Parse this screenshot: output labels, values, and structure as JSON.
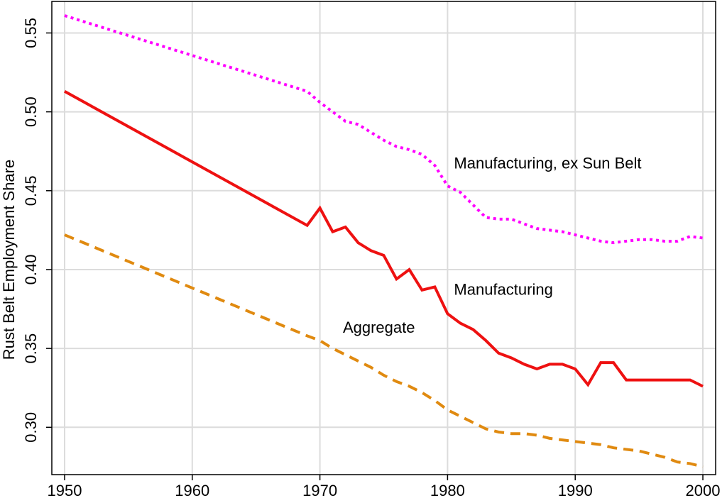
{
  "chart_data": {
    "type": "line",
    "title": "",
    "xlabel": "",
    "ylabel": "Rust Belt Employment Share",
    "xlim": [
      1949,
      2001
    ],
    "ylim": [
      0.27,
      0.57
    ],
    "x_ticks": [
      "1950",
      "1960",
      "1970",
      "1980",
      "1990",
      "2000"
    ],
    "y_ticks": [
      "0.30",
      "0.35",
      "0.40",
      "0.45",
      "0.50",
      "0.55"
    ],
    "grid": true,
    "legend": "none",
    "series": [
      {
        "name": "Manufacturing, ex Sun Belt",
        "color": "#ff00ff",
        "dash": "dotted",
        "points": [
          [
            1950,
            0.561
          ],
          [
            1969,
            0.513
          ],
          [
            1970,
            0.506
          ],
          [
            1971,
            0.5
          ],
          [
            1972,
            0.494
          ],
          [
            1973,
            0.492
          ],
          [
            1974,
            0.487
          ],
          [
            1975,
            0.482
          ],
          [
            1976,
            0.478
          ],
          [
            1977,
            0.476
          ],
          [
            1978,
            0.473
          ],
          [
            1979,
            0.466
          ],
          [
            1980,
            0.453
          ],
          [
            1981,
            0.449
          ],
          [
            1982,
            0.441
          ],
          [
            1983,
            0.433
          ],
          [
            1984,
            0.432
          ],
          [
            1985,
            0.432
          ],
          [
            1986,
            0.429
          ],
          [
            1987,
            0.426
          ],
          [
            1988,
            0.425
          ],
          [
            1989,
            0.424
          ],
          [
            1990,
            0.422
          ],
          [
            1991,
            0.42
          ],
          [
            1992,
            0.418
          ],
          [
            1993,
            0.417
          ],
          [
            1994,
            0.418
          ],
          [
            1995,
            0.419
          ],
          [
            1996,
            0.419
          ],
          [
            1997,
            0.418
          ],
          [
            1998,
            0.418
          ],
          [
            1999,
            0.421
          ],
          [
            2000,
            0.42
          ]
        ]
      },
      {
        "name": "Manufacturing",
        "color": "#ee1111",
        "dash": "solid",
        "points": [
          [
            1950,
            0.513
          ],
          [
            1969,
            0.428
          ],
          [
            1970,
            0.439
          ],
          [
            1971,
            0.424
          ],
          [
            1972,
            0.427
          ],
          [
            1973,
            0.417
          ],
          [
            1974,
            0.412
          ],
          [
            1975,
            0.409
          ],
          [
            1976,
            0.394
          ],
          [
            1977,
            0.4
          ],
          [
            1978,
            0.387
          ],
          [
            1979,
            0.389
          ],
          [
            1980,
            0.372
          ],
          [
            1981,
            0.366
          ],
          [
            1982,
            0.362
          ],
          [
            1983,
            0.355
          ],
          [
            1984,
            0.347
          ],
          [
            1985,
            0.344
          ],
          [
            1986,
            0.34
          ],
          [
            1987,
            0.337
          ],
          [
            1988,
            0.34
          ],
          [
            1989,
            0.34
          ],
          [
            1990,
            0.337
          ],
          [
            1991,
            0.327
          ],
          [
            1992,
            0.341
          ],
          [
            1993,
            0.341
          ],
          [
            1994,
            0.33
          ],
          [
            1995,
            0.33
          ],
          [
            1996,
            0.33
          ],
          [
            1997,
            0.33
          ],
          [
            1998,
            0.33
          ],
          [
            1999,
            0.33
          ],
          [
            2000,
            0.326
          ]
        ]
      },
      {
        "name": "Aggregate",
        "color": "#e08a10",
        "dash": "dashed",
        "points": [
          [
            1950,
            0.422
          ],
          [
            1969,
            0.358
          ],
          [
            1970,
            0.355
          ],
          [
            1971,
            0.35
          ],
          [
            1972,
            0.346
          ],
          [
            1973,
            0.342
          ],
          [
            1974,
            0.338
          ],
          [
            1975,
            0.333
          ],
          [
            1976,
            0.329
          ],
          [
            1977,
            0.326
          ],
          [
            1978,
            0.322
          ],
          [
            1979,
            0.317
          ],
          [
            1980,
            0.311
          ],
          [
            1981,
            0.307
          ],
          [
            1982,
            0.303
          ],
          [
            1983,
            0.299
          ],
          [
            1984,
            0.297
          ],
          [
            1985,
            0.296
          ],
          [
            1986,
            0.296
          ],
          [
            1987,
            0.295
          ],
          [
            1988,
            0.293
          ],
          [
            1989,
            0.292
          ],
          [
            1990,
            0.291
          ],
          [
            1991,
            0.29
          ],
          [
            1992,
            0.289
          ],
          [
            1993,
            0.287
          ],
          [
            1994,
            0.286
          ],
          [
            1995,
            0.285
          ],
          [
            1996,
            0.283
          ],
          [
            1997,
            0.281
          ],
          [
            1998,
            0.278
          ],
          [
            1999,
            0.277
          ],
          [
            2000,
            0.275
          ]
        ]
      }
    ],
    "annotations": [
      {
        "text": "Manufacturing, ex Sun Belt",
        "series": 0,
        "at": [
          1980.5,
          0.464
        ]
      },
      {
        "text": "Manufacturing",
        "series": 1,
        "at": [
          1980.5,
          0.384
        ]
      },
      {
        "text": "Aggregate",
        "series": 2,
        "at": [
          1971.8,
          0.36
        ]
      }
    ]
  }
}
